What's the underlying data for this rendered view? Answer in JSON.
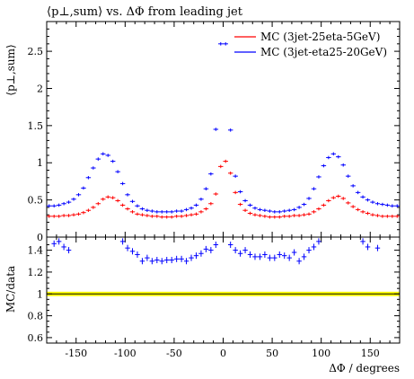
{
  "chart_data": [
    {
      "type": "scatter",
      "title": "⟨p⊥,sum⟩ vs. ΔΦ from leading jet",
      "ylabel": "⟨p⊥,sum⟩",
      "xlabel": "",
      "xlim": [
        -180,
        180
      ],
      "ylim": [
        0,
        2.9
      ],
      "x_ticks": [
        -150,
        -100,
        -50,
        0,
        50,
        100,
        150
      ],
      "y_ticks": [
        0,
        0.5,
        1,
        1.5,
        2,
        2.5
      ],
      "y_tick_labels": [
        "0",
        "0.5",
        "1",
        "1.5",
        "2",
        "2.5"
      ],
      "legend_position": "top-right",
      "series": [
        {
          "name": "MC (3jet-25eta-5GeV)",
          "color": "#ff0000",
          "x": [
            -177.5,
            -172.5,
            -167.5,
            -162.5,
            -157.5,
            -152.5,
            -147.5,
            -142.5,
            -137.5,
            -132.5,
            -127.5,
            -122.5,
            -117.5,
            -112.5,
            -107.5,
            -102.5,
            -97.5,
            -92.5,
            -87.5,
            -82.5,
            -77.5,
            -72.5,
            -67.5,
            -62.5,
            -57.5,
            -52.5,
            -47.5,
            -42.5,
            -37.5,
            -32.5,
            -27.5,
            -22.5,
            -17.5,
            -12.5,
            -7.5,
            -2.5,
            2.5,
            7.5,
            12.5,
            17.5,
            22.5,
            27.5,
            32.5,
            37.5,
            42.5,
            47.5,
            52.5,
            57.5,
            62.5,
            67.5,
            72.5,
            77.5,
            82.5,
            87.5,
            92.5,
            97.5,
            102.5,
            107.5,
            112.5,
            117.5,
            122.5,
            127.5,
            132.5,
            137.5,
            142.5,
            147.5,
            152.5,
            157.5,
            162.5,
            167.5,
            172.5,
            177.5
          ],
          "y": [
            0.28,
            0.28,
            0.28,
            0.29,
            0.29,
            0.3,
            0.31,
            0.33,
            0.36,
            0.4,
            0.45,
            0.51,
            0.54,
            0.53,
            0.49,
            0.43,
            0.38,
            0.34,
            0.31,
            0.3,
            0.29,
            0.28,
            0.28,
            0.27,
            0.27,
            0.27,
            0.28,
            0.28,
            0.29,
            0.3,
            0.31,
            0.34,
            0.38,
            0.45,
            0.58,
            0.95,
            1.02,
            0.86,
            0.6,
            0.44,
            0.36,
            0.32,
            0.3,
            0.29,
            0.28,
            0.27,
            0.27,
            0.27,
            0.28,
            0.28,
            0.29,
            0.29,
            0.3,
            0.31,
            0.34,
            0.38,
            0.43,
            0.49,
            0.53,
            0.55,
            0.52,
            0.46,
            0.41,
            0.37,
            0.34,
            0.32,
            0.3,
            0.29,
            0.28,
            0.28,
            0.28,
            0.28
          ]
        },
        {
          "name": "MC (3jet-eta25-20GeV)",
          "color": "#0000ff",
          "x": [
            -177.5,
            -172.5,
            -167.5,
            -162.5,
            -157.5,
            -152.5,
            -147.5,
            -142.5,
            -137.5,
            -132.5,
            -127.5,
            -122.5,
            -117.5,
            -112.5,
            -107.5,
            -102.5,
            -97.5,
            -92.5,
            -87.5,
            -82.5,
            -77.5,
            -72.5,
            -67.5,
            -62.5,
            -57.5,
            -52.5,
            -47.5,
            -42.5,
            -37.5,
            -32.5,
            -27.5,
            -22.5,
            -17.5,
            -12.5,
            -7.5,
            -2.5,
            2.5,
            7.5,
            12.5,
            17.5,
            22.5,
            27.5,
            32.5,
            37.5,
            42.5,
            47.5,
            52.5,
            57.5,
            62.5,
            67.5,
            72.5,
            77.5,
            82.5,
            87.5,
            92.5,
            97.5,
            102.5,
            107.5,
            112.5,
            117.5,
            122.5,
            127.5,
            132.5,
            137.5,
            142.5,
            147.5,
            152.5,
            157.5,
            162.5,
            167.5,
            172.5,
            177.5
          ],
          "y": [
            0.42,
            0.42,
            0.43,
            0.45,
            0.47,
            0.51,
            0.57,
            0.66,
            0.8,
            0.93,
            1.05,
            1.12,
            1.1,
            1.02,
            0.88,
            0.72,
            0.57,
            0.48,
            0.42,
            0.38,
            0.36,
            0.35,
            0.34,
            0.34,
            0.34,
            0.34,
            0.35,
            0.35,
            0.37,
            0.39,
            0.43,
            0.51,
            0.65,
            0.85,
            1.45,
            2.6,
            2.6,
            1.44,
            0.82,
            0.61,
            0.49,
            0.43,
            0.39,
            0.37,
            0.36,
            0.35,
            0.34,
            0.34,
            0.35,
            0.36,
            0.37,
            0.4,
            0.44,
            0.52,
            0.65,
            0.81,
            0.96,
            1.07,
            1.12,
            1.08,
            0.97,
            0.82,
            0.69,
            0.6,
            0.54,
            0.5,
            0.47,
            0.45,
            0.44,
            0.43,
            0.42,
            0.42
          ]
        }
      ]
    },
    {
      "type": "scatter",
      "title": "",
      "ylabel": "MC/data",
      "xlabel": "ΔΦ / degrees",
      "xlim": [
        -180,
        180
      ],
      "ylim": [
        0.55,
        1.52
      ],
      "x_ticks": [
        -150,
        -100,
        -50,
        0,
        50,
        100,
        150
      ],
      "x_tick_labels": [
        "-150",
        "-100",
        "-50",
        "0",
        "50",
        "100",
        "150"
      ],
      "y_ticks": [
        0.6,
        0.8,
        1,
        1.2,
        1.4
      ],
      "y_tick_labels": [
        "0.6",
        "0.8",
        "1",
        "1.2",
        "1.4"
      ],
      "reference_line": 1.0,
      "reference_band": [
        0.98,
        1.02
      ],
      "reference_color": "#000000",
      "band_color": "#ffff00",
      "series": [
        {
          "color": "#0000ff",
          "x": [
            -172.5,
            -167.5,
            -162.5,
            -157.5,
            -102.5,
            -97.5,
            -92.5,
            -87.5,
            -82.5,
            -77.5,
            -72.5,
            -67.5,
            -62.5,
            -57.5,
            -52.5,
            -47.5,
            -42.5,
            -37.5,
            -32.5,
            -27.5,
            -22.5,
            -17.5,
            -12.5,
            -7.5,
            7.5,
            12.5,
            17.5,
            22.5,
            27.5,
            32.5,
            37.5,
            42.5,
            47.5,
            52.5,
            57.5,
            62.5,
            67.5,
            72.5,
            77.5,
            82.5,
            87.5,
            92.5,
            97.5,
            142.5,
            147.5,
            157.5
          ],
          "y": [
            1.46,
            1.48,
            1.43,
            1.4,
            1.48,
            1.42,
            1.39,
            1.36,
            1.3,
            1.33,
            1.3,
            1.31,
            1.3,
            1.31,
            1.31,
            1.32,
            1.32,
            1.3,
            1.33,
            1.35,
            1.37,
            1.41,
            1.4,
            1.45,
            1.45,
            1.4,
            1.37,
            1.4,
            1.36,
            1.34,
            1.34,
            1.36,
            1.33,
            1.33,
            1.36,
            1.35,
            1.33,
            1.38,
            1.3,
            1.34,
            1.4,
            1.43,
            1.48,
            1.48,
            1.43,
            1.42
          ]
        }
      ]
    }
  ]
}
